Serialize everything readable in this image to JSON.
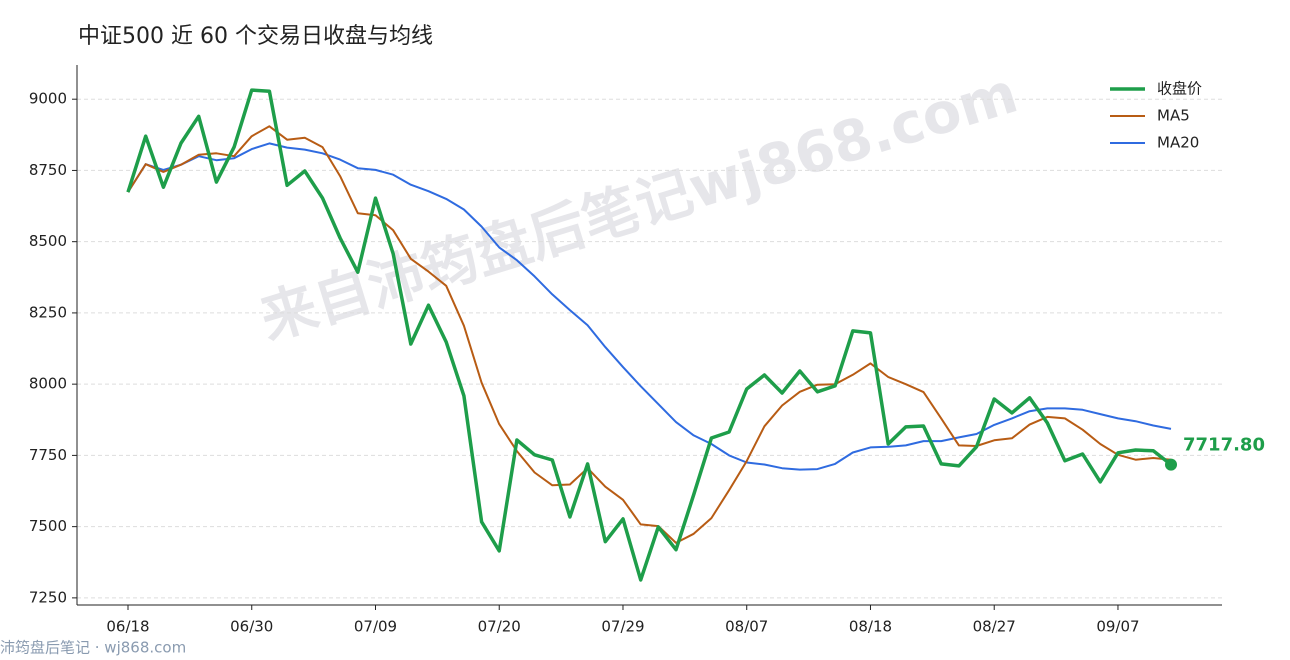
{
  "chart_data": {
    "type": "line",
    "title": "中证500 近 60 个交易日收盘与均线",
    "watermark": "来自沛筠盘后笔记wj868.com",
    "source": "沛筠盘后笔记 · wj868.com",
    "categories": [
      "06/18",
      null,
      null,
      null,
      null,
      null,
      null,
      "06/30",
      null,
      null,
      null,
      null,
      null,
      null,
      "07/09",
      null,
      null,
      null,
      null,
      null,
      null,
      "07/20",
      null,
      null,
      null,
      null,
      null,
      null,
      "07/29",
      null,
      null,
      null,
      null,
      null,
      null,
      "08/07",
      null,
      null,
      null,
      null,
      null,
      null,
      "08/18",
      null,
      null,
      null,
      null,
      null,
      null,
      "08/27",
      null,
      null,
      null,
      null,
      null,
      null,
      "09/07",
      null,
      null,
      null
    ],
    "series": [
      {
        "name": "收盘价",
        "color": "#1e9e4a",
        "values": [
          8674,
          8870,
          8691,
          8846,
          8940,
          8709,
          8832,
          9032,
          9028,
          8698,
          8748,
          8653,
          8513,
          8393,
          8653,
          8457,
          8141,
          8277,
          8148,
          7959,
          7517,
          7415,
          7804,
          7752,
          7734,
          7534,
          7720,
          7447,
          7527,
          7313,
          7499,
          7419,
          7612,
          7811,
          7832,
          7983,
          8032,
          7969,
          8046,
          7973,
          7994,
          8187,
          8180,
          7790,
          7850,
          7853,
          7720,
          7713,
          7780,
          7948,
          7899,
          7952,
          7864,
          7731,
          7755,
          7657,
          7759,
          7769,
          7766,
          7717.8
        ],
        "value_labels": [
          null,
          null,
          null,
          null,
          null,
          null,
          null,
          null,
          null,
          null,
          null,
          null,
          null,
          null,
          null,
          null,
          null,
          null,
          null,
          null,
          null,
          null,
          null,
          null,
          null,
          null,
          null,
          null,
          null,
          null,
          null,
          null,
          null,
          null,
          null,
          null,
          null,
          null,
          null,
          null,
          null,
          null,
          null,
          null,
          null,
          null,
          null,
          null,
          null,
          null,
          null,
          null,
          null,
          null,
          null,
          null,
          null,
          null,
          null,
          "7717.80"
        ]
      },
      {
        "name": "MA5",
        "color": "#b85c14",
        "values": [
          8674,
          8772,
          8745,
          8770,
          8805,
          8810,
          8800,
          8870,
          8905,
          8858,
          8865,
          8832,
          8730,
          8600,
          8593,
          8540,
          8440,
          8395,
          8345,
          8205,
          8005,
          7860,
          7765,
          7690,
          7645,
          7648,
          7705,
          7640,
          7594,
          7508,
          7502,
          7443,
          7475,
          7530,
          7628,
          7730,
          7852,
          7925,
          7973,
          7998,
          8000,
          8033,
          8073,
          8025,
          8000,
          7972,
          7880,
          7785,
          7783,
          7803,
          7810,
          7858,
          7885,
          7880,
          7840,
          7790,
          7752,
          7735,
          7741,
          7735
        ]
      },
      {
        "name": "MA20",
        "color": "#2f6be0",
        "values": [
          8674,
          8772,
          8752,
          8770,
          8800,
          8786,
          8793,
          8825,
          8845,
          8830,
          8823,
          8810,
          8788,
          8758,
          8752,
          8735,
          8700,
          8677,
          8650,
          8613,
          8553,
          8480,
          8435,
          8378,
          8315,
          8260,
          8207,
          8130,
          8060,
          7993,
          7930,
          7867,
          7820,
          7790,
          7750,
          7725,
          7718,
          7705,
          7700,
          7702,
          7720,
          7760,
          7778,
          7780,
          7785,
          7800,
          7800,
          7813,
          7825,
          7857,
          7880,
          7905,
          7915,
          7915,
          7910,
          7895,
          7880,
          7870,
          7855,
          7843
        ]
      }
    ],
    "ylim": [
      7225,
      9120
    ],
    "yticks": [
      7250,
      7500,
      7750,
      8000,
      8250,
      8500,
      8750,
      9000
    ],
    "grid": true,
    "legend": "upper right"
  }
}
